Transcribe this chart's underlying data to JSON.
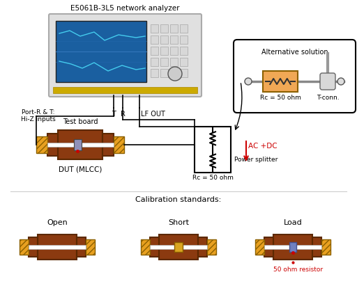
{
  "title": "E5061B-3L5 network analyzer",
  "bg_color": "#ffffff",
  "brown": "#8B3A10",
  "dark_brown": "#5C2800",
  "gold": "#E8A020",
  "gold_edge": "#8B6000",
  "resistor_fill": "#F0A855",
  "red": "#cc0000",
  "black": "#000000",
  "gray": "#888888",
  "light_gray": "#cccccc",
  "wire_color": "#000000",
  "port_label": "Port-R & T:\nHi-Z inputs",
  "t_label": "T",
  "r_label": "R",
  "lf_label": "LF OUT",
  "dut_label": "DUT (MLCC)",
  "testboard_label": "Test board",
  "rc_label": "Rc = 50 ohm",
  "power_splitter_label": "Power splitter",
  "ac_dc_label": "AC +DC",
  "alt_label": "Alternative solution",
  "tconn_label": "T-conn.",
  "rc2_label": "Rc = 50 ohm",
  "cal_label": "Calibration standards:",
  "open_label": "Open",
  "short_label": "Short",
  "load_label": "Load",
  "resistor_label": "50 ohm resistor"
}
